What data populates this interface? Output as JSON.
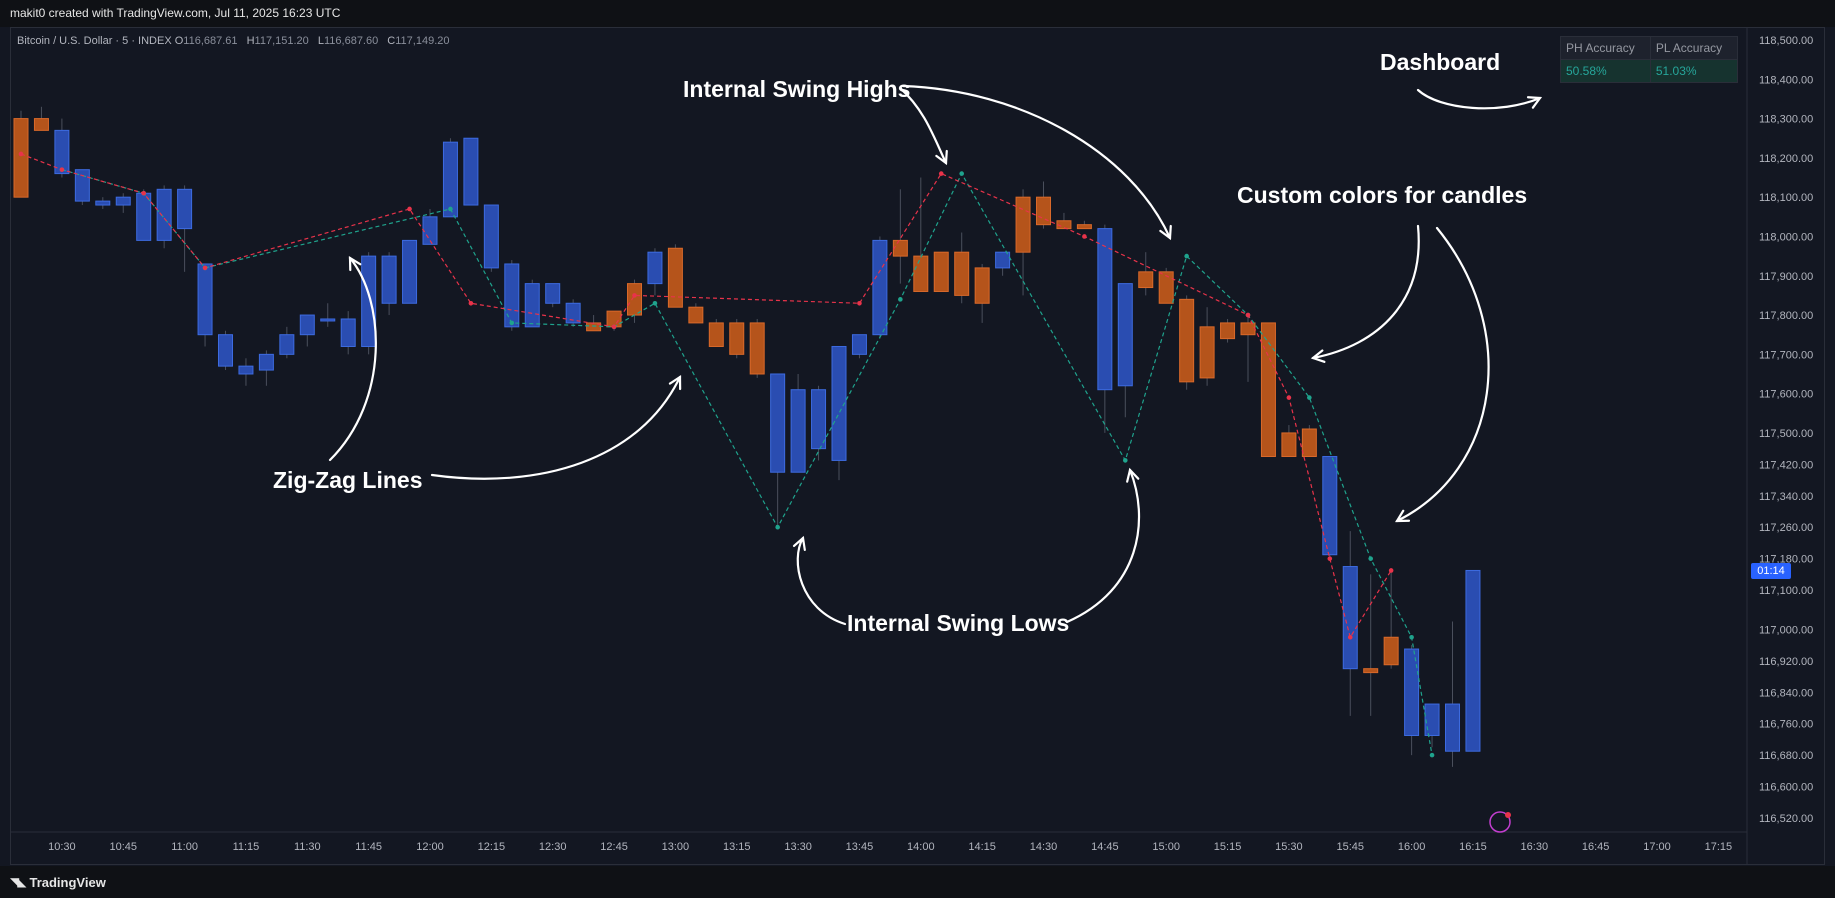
{
  "header": {
    "attribution": "makit0 created with TradingView.com, Jul 11, 2025 16:23 UTC"
  },
  "legend": {
    "symbol": "Bitcoin / U.S. Dollar · 5 · INDEX",
    "o_label": "O",
    "o_value": "116,687.61",
    "h_label": "H",
    "h_value": "117,151.20",
    "l_label": "L",
    "l_value": "116,687.60",
    "c_label": "C",
    "c_value": "117,149.20"
  },
  "dashboard": {
    "headers": [
      "PH Accuracy",
      "PL Accuracy"
    ],
    "values": [
      "50.58%",
      "51.03%"
    ]
  },
  "footer": {
    "brand": "TradingView"
  },
  "last_price_badge": "01:14",
  "colors": {
    "background": "#131722",
    "bull": "#2a4db1",
    "bull_border": "#3d6be0",
    "bear": "#b5541b",
    "bear_border": "#d9692a",
    "zigzag_high": "#e8334a",
    "zigzag_low": "#1fa38d",
    "annotation": "#ffffff",
    "accent": "#2962ff"
  },
  "annotations": [
    {
      "id": "zigzag",
      "text": "Zig-Zag Lines"
    },
    {
      "id": "swing-highs",
      "text": "Internal Swing Highs"
    },
    {
      "id": "swing-lows",
      "text": "Internal Swing Lows"
    },
    {
      "id": "custom-colors",
      "text": "Custom colors for candles"
    },
    {
      "id": "dashboard",
      "text": "Dashboard"
    }
  ],
  "chart_data": {
    "type": "candlestick",
    "title": "Bitcoin / U.S. Dollar · 5 · INDEX",
    "ylim": [
      116460,
      118520
    ],
    "y_ticks": [
      "118,500.00",
      "118,400.00",
      "118,300.00",
      "118,200.00",
      "118,100.00",
      "118,000.00",
      "117,900.00",
      "117,800.00",
      "117,700.00",
      "117,600.00",
      "117,500.00",
      "117,420.00",
      "117,340.00",
      "117,260.00",
      "117,180.00",
      "117,100.00",
      "117,000.00",
      "116,920.00",
      "116,840.00",
      "116,760.00",
      "116,680.00",
      "116,600.00",
      "116,520.00"
    ],
    "x_ticks": [
      "10:30",
      "10:45",
      "11:00",
      "11:15",
      "11:30",
      "11:45",
      "12:00",
      "12:15",
      "12:30",
      "12:45",
      "13:00",
      "13:15",
      "13:30",
      "13:45",
      "14:00",
      "14:15",
      "14:30",
      "14:45",
      "15:00",
      "15:15",
      "15:30",
      "15:45",
      "16:00",
      "16:15",
      "16:30",
      "16:45",
      "17:00",
      "17:15"
    ],
    "time_start": "10:20",
    "interval_minutes": 5,
    "candles": [
      {
        "o": 118300,
        "h": 118320,
        "l": 118100,
        "c": 118100
      },
      {
        "o": 118300,
        "h": 118330,
        "l": 118270,
        "c": 118270
      },
      {
        "o": 118160,
        "h": 118300,
        "l": 118150,
        "c": 118270
      },
      {
        "o": 118090,
        "h": 118170,
        "l": 118080,
        "c": 118170
      },
      {
        "o": 118080,
        "h": 118100,
        "l": 118070,
        "c": 118090
      },
      {
        "o": 118080,
        "h": 118110,
        "l": 118060,
        "c": 118100
      },
      {
        "o": 117990,
        "h": 118120,
        "l": 117990,
        "c": 118110
      },
      {
        "o": 117990,
        "h": 118130,
        "l": 117970,
        "c": 118120
      },
      {
        "o": 118020,
        "h": 118130,
        "l": 117910,
        "c": 118120
      },
      {
        "o": 117750,
        "h": 117930,
        "l": 117720,
        "c": 117930
      },
      {
        "o": 117670,
        "h": 117760,
        "l": 117660,
        "c": 117750
      },
      {
        "o": 117650,
        "h": 117690,
        "l": 117620,
        "c": 117670
      },
      {
        "o": 117660,
        "h": 117710,
        "l": 117620,
        "c": 117700
      },
      {
        "o": 117700,
        "h": 117770,
        "l": 117690,
        "c": 117750
      },
      {
        "o": 117750,
        "h": 117800,
        "l": 117720,
        "c": 117800
      },
      {
        "o": 117790,
        "h": 117830,
        "l": 117770,
        "c": 117790
      },
      {
        "o": 117720,
        "h": 117810,
        "l": 117700,
        "c": 117790
      },
      {
        "o": 117720,
        "h": 117960,
        "l": 117700,
        "c": 117950
      },
      {
        "o": 117830,
        "h": 117960,
        "l": 117800,
        "c": 117950
      },
      {
        "o": 117830,
        "h": 117990,
        "l": 117830,
        "c": 117990
      },
      {
        "o": 117980,
        "h": 118070,
        "l": 117980,
        "c": 118050
      },
      {
        "o": 118050,
        "h": 118250,
        "l": 118050,
        "c": 118240
      },
      {
        "o": 118080,
        "h": 118250,
        "l": 118080,
        "c": 118250
      },
      {
        "o": 117920,
        "h": 118080,
        "l": 117910,
        "c": 118080
      },
      {
        "o": 117770,
        "h": 117940,
        "l": 117760,
        "c": 117930
      },
      {
        "o": 117770,
        "h": 117890,
        "l": 117770,
        "c": 117880
      },
      {
        "o": 117830,
        "h": 117880,
        "l": 117820,
        "c": 117880
      },
      {
        "o": 117780,
        "h": 117840,
        "l": 117770,
        "c": 117830
      },
      {
        "o": 117780,
        "h": 117800,
        "l": 117760,
        "c": 117760
      },
      {
        "o": 117810,
        "h": 117810,
        "l": 117760,
        "c": 117770
      },
      {
        "o": 117880,
        "h": 117890,
        "l": 117780,
        "c": 117800
      },
      {
        "o": 117880,
        "h": 117970,
        "l": 117850,
        "c": 117960
      },
      {
        "o": 117970,
        "h": 117980,
        "l": 117820,
        "c": 117820
      },
      {
        "o": 117820,
        "h": 117830,
        "l": 117780,
        "c": 117780
      },
      {
        "o": 117780,
        "h": 117790,
        "l": 117720,
        "c": 117720
      },
      {
        "o": 117780,
        "h": 117790,
        "l": 117690,
        "c": 117700
      },
      {
        "o": 117780,
        "h": 117790,
        "l": 117640,
        "c": 117650
      },
      {
        "o": 117400,
        "h": 117650,
        "l": 117260,
        "c": 117650
      },
      {
        "o": 117400,
        "h": 117650,
        "l": 117400,
        "c": 117610
      },
      {
        "o": 117460,
        "h": 117620,
        "l": 117430,
        "c": 117610
      },
      {
        "o": 117430,
        "h": 117720,
        "l": 117380,
        "c": 117720
      },
      {
        "o": 117700,
        "h": 117750,
        "l": 117690,
        "c": 117750
      },
      {
        "o": 117750,
        "h": 118000,
        "l": 117740,
        "c": 117990
      },
      {
        "o": 117990,
        "h": 118120,
        "l": 117880,
        "c": 117950
      },
      {
        "o": 117950,
        "h": 118150,
        "l": 117860,
        "c": 117860
      },
      {
        "o": 117960,
        "h": 117960,
        "l": 117860,
        "c": 117860
      },
      {
        "o": 117960,
        "h": 118010,
        "l": 117830,
        "c": 117850
      },
      {
        "o": 117920,
        "h": 117930,
        "l": 117780,
        "c": 117830
      },
      {
        "o": 117920,
        "h": 117960,
        "l": 117900,
        "c": 117960
      },
      {
        "o": 118100,
        "h": 118120,
        "l": 117850,
        "c": 117960
      },
      {
        "o": 118100,
        "h": 118140,
        "l": 118020,
        "c": 118030
      },
      {
        "o": 118040,
        "h": 118060,
        "l": 118020,
        "c": 118020
      },
      {
        "o": 118030,
        "h": 118040,
        "l": 118020,
        "c": 118020
      },
      {
        "o": 117610,
        "h": 118030,
        "l": 117500,
        "c": 118020
      },
      {
        "o": 117620,
        "h": 117880,
        "l": 117540,
        "c": 117880
      },
      {
        "o": 117910,
        "h": 117960,
        "l": 117850,
        "c": 117870
      },
      {
        "o": 117910,
        "h": 117920,
        "l": 117830,
        "c": 117830
      },
      {
        "o": 117840,
        "h": 117850,
        "l": 117610,
        "c": 117630
      },
      {
        "o": 117770,
        "h": 117820,
        "l": 117620,
        "c": 117640
      },
      {
        "o": 117780,
        "h": 117790,
        "l": 117730,
        "c": 117740
      },
      {
        "o": 117780,
        "h": 117800,
        "l": 117630,
        "c": 117750
      },
      {
        "o": 117780,
        "h": 117780,
        "l": 117440,
        "c": 117440
      },
      {
        "o": 117500,
        "h": 117520,
        "l": 117440,
        "c": 117440
      },
      {
        "o": 117510,
        "h": 117520,
        "l": 117440,
        "c": 117440
      },
      {
        "o": 117190,
        "h": 117440,
        "l": 117180,
        "c": 117440
      },
      {
        "o": 116900,
        "h": 117250,
        "l": 116780,
        "c": 117160
      },
      {
        "o": 116900,
        "h": 117140,
        "l": 116780,
        "c": 116890
      },
      {
        "o": 116980,
        "h": 117150,
        "l": 116900,
        "c": 116910
      },
      {
        "o": 116730,
        "h": 116960,
        "l": 116680,
        "c": 116950
      },
      {
        "o": 116730,
        "h": 116810,
        "l": 116700,
        "c": 116810
      },
      {
        "o": 116690,
        "h": 117020,
        "l": 116650,
        "c": 116810
      },
      {
        "o": 116690,
        "h": 117150,
        "l": 116690,
        "c": 117150
      }
    ],
    "zigzag_high": [
      [
        0,
        118210
      ],
      [
        2,
        118170
      ],
      [
        6,
        118110
      ],
      [
        9,
        117920
      ],
      [
        19,
        118070
      ],
      [
        22,
        117830
      ],
      [
        29,
        117770
      ],
      [
        30,
        117850
      ],
      [
        41,
        117830
      ],
      [
        45,
        118160
      ],
      [
        52,
        118000
      ],
      [
        60,
        117800
      ],
      [
        62,
        117590
      ],
      [
        64,
        117180
      ],
      [
        65,
        116980
      ],
      [
        67,
        117150
      ]
    ],
    "zigzag_low": [
      [
        2,
        118170
      ],
      [
        6,
        118110
      ],
      [
        9,
        117920
      ],
      [
        21,
        118070
      ],
      [
        24,
        117780
      ],
      [
        29,
        117770
      ],
      [
        31,
        117830
      ],
      [
        37,
        117260
      ],
      [
        43,
        117840
      ],
      [
        46,
        118160
      ],
      [
        54,
        117430
      ],
      [
        57,
        117950
      ],
      [
        60,
        117800
      ],
      [
        63,
        117590
      ],
      [
        66,
        117180
      ],
      [
        68,
        116980
      ],
      [
        69,
        116680
      ]
    ]
  }
}
